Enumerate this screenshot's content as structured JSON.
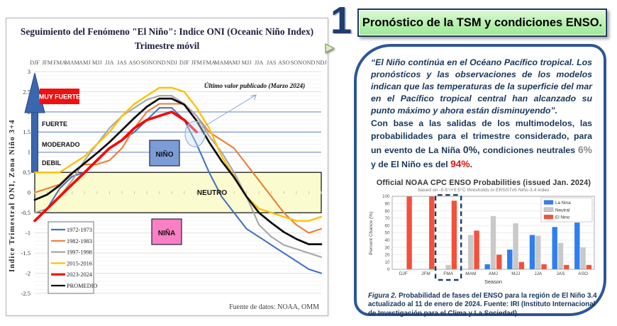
{
  "header": {
    "number": "1",
    "title": "Pronóstico de la TSM y condiciones ENSO."
  },
  "right_panel": {
    "quote": "“El Niño continúa en el Océano Pacífico tropical. Los pronósticos y las observaciones de los modelos indican que las temperaturas de la superficie del mar en el Pacífico tropical central han alcanzado su punto máximo y ahora están disminuyendo”.",
    "body_parts": {
      "a": "Con base a las salidas de los multimodelos, las probabilidades para el trimestre considerado, para un evento de La Niña ",
      "la_nina_pct": "0%,",
      "b": " condiciones neutrales ",
      "neutral_pct": "6%",
      "c": " y de  El Niño es del ",
      "el_nino_pct": "94%",
      "d": "."
    },
    "caption_prefix": "Figura 2.",
    "caption_text": " Probabilidad de fases del ENSO para la región de El Niño 3.4 actualizado al 11 de enero de 2024. Fuente: IRI (Instituto Internacional de Investigación para el Clima y La Sociedad)."
  },
  "colors": {
    "neutral_band": "#FBFBD0",
    "nino_box": "#7C9CD6",
    "nina_box": "#F980C2",
    "muy_fuerte_box": "#EE1111",
    "arrow_blue": "#3A67B0",
    "grid_blue": "#88A3D4",
    "panel_border": "#2C5796",
    "title_box_green": "#B4EFAB",
    "highlight_dash": "#17406B"
  },
  "chart_data": [
    {
      "type": "line",
      "title_line1": "Seguimiento del Fenómeno \"El Niño\": Indice ONI (Oceanic Niño Index)",
      "title_line2": "Trimestre móvil",
      "ylabel": "Indice Trimestral ONI, Zona Niño 3+4",
      "source": "Fuente de datos: NOAA, OMM",
      "annotation": "Último valor publicado  (Marzo 2024)",
      "x": [
        "DJF",
        "JFM",
        "FMA",
        "MAM",
        "AMJ",
        "MJJ",
        "JJA",
        "JAS",
        "ASO",
        "SON",
        "OND",
        "NDJ",
        "DJF",
        "JFM",
        "FMA",
        "MAM",
        "AMJ",
        "MJJ",
        "JJA",
        "JAS",
        "ASO",
        "SON",
        "OND",
        "NDJ"
      ],
      "ylim": [
        -2.5,
        3
      ],
      "yticks": [
        3,
        2.5,
        2,
        1.5,
        1,
        0.5,
        0,
        -0.5,
        -1,
        -1.5,
        -2,
        -2.5
      ],
      "blue_gridlines": [
        1,
        1.5,
        2
      ],
      "neutral_band": [
        -0.5,
        0.5
      ],
      "zones": {
        "muy_fuerte": "MUY FUERTE",
        "fuerte": "FUERTE",
        "moderado": "MODERADO",
        "debil": "DEBIL",
        "nino": "NIÑO",
        "neutro": "NEUTRO",
        "nina": "NIÑA"
      },
      "grid": true,
      "legend_position": "bottom-left",
      "series": [
        {
          "name": "1972-1973",
          "color": "#4472C4",
          "width": 2.1,
          "values": [
            -0.7,
            -0.4,
            0.1,
            0.4,
            0.5,
            0.8,
            1.1,
            1.3,
            1.5,
            1.8,
            2.1,
            2.1,
            1.8,
            1.2,
            0.5,
            -0.1,
            -0.5,
            -0.9,
            -1.1,
            -1.3,
            -1.5,
            -1.7,
            -1.9,
            -2.0
          ]
        },
        {
          "name": "1982-1983",
          "color": "#ED7D31",
          "width": 2.1,
          "values": [
            0.0,
            0.1,
            0.2,
            0.5,
            0.7,
            0.7,
            0.8,
            1.1,
            1.6,
            2.0,
            2.2,
            2.2,
            2.2,
            1.9,
            1.5,
            1.3,
            1.1,
            0.7,
            0.3,
            -0.1,
            -0.5,
            -0.8,
            -1.0,
            -0.9
          ]
        },
        {
          "name": "1997-1998",
          "color": "#A6A6A6",
          "width": 2.1,
          "values": [
            -0.5,
            -0.4,
            -0.1,
            0.3,
            0.8,
            1.2,
            1.6,
            1.9,
            2.1,
            2.3,
            2.4,
            2.4,
            2.2,
            1.9,
            1.4,
            1.0,
            0.5,
            -0.1,
            -0.8,
            -1.1,
            -1.3,
            -1.4,
            -1.5,
            -1.6
          ]
        },
        {
          "name": "2015-2016",
          "color": "#FFC000",
          "width": 2.4,
          "values": [
            0.5,
            0.5,
            0.5,
            0.7,
            0.9,
            1.2,
            1.5,
            1.9,
            2.2,
            2.4,
            2.6,
            2.6,
            2.5,
            2.1,
            1.6,
            0.9,
            0.4,
            -0.1,
            -0.4,
            -0.5,
            -0.6,
            -0.7,
            -0.7,
            -0.6
          ]
        },
        {
          "name": "2023-2024",
          "color": "#FF0000",
          "width": 3.6,
          "values": [
            -0.7,
            -0.4,
            -0.1,
            0.2,
            0.5,
            0.8,
            1.1,
            1.3,
            1.6,
            1.8,
            1.9,
            2.0,
            1.8,
            1.5
          ]
        },
        {
          "name": "PROMEDIO",
          "color": "#0a0a0a",
          "width": 2.7,
          "values": [
            -0.18,
            -0.05,
            0.18,
            0.48,
            0.73,
            0.98,
            1.25,
            1.55,
            1.85,
            2.13,
            2.33,
            2.33,
            2.18,
            1.78,
            1.25,
            0.78,
            0.38,
            -0.1,
            -0.5,
            -0.75,
            -0.98,
            -1.15,
            -1.28,
            -1.28
          ]
        }
      ]
    },
    {
      "type": "bar",
      "title": "Official NOAA CPC ENSO Probabilities (issued Jan. 2024)",
      "subtitle": "based on -0.5°/+0.5°C thresholds in ERSSTv5 Niño-3.4 index",
      "xlabel": "Season",
      "ylabel": "Percent Chance (%)",
      "ylim": [
        0,
        100
      ],
      "ytick_step": 10,
      "grid": true,
      "legend_position": "top-right",
      "categories": [
        "DJF",
        "JFM",
        "FMA",
        "MAM",
        "AMJ",
        "MJJ",
        "JJA",
        "JAS",
        "ASO"
      ],
      "highlighted_category": "FMA",
      "series": [
        {
          "name": "La Nina",
          "color": "#2E7FEF",
          "values": [
            0,
            0,
            0,
            0,
            7,
            27,
            47,
            58,
            64
          ]
        },
        {
          "name": "Neutral",
          "color": "#C9C9C9",
          "values": [
            0,
            0,
            6,
            47,
            73,
            63,
            46,
            36,
            30
          ]
        },
        {
          "name": "El Nino",
          "color": "#F4503B",
          "values": [
            100,
            100,
            94,
            53,
            20,
            10,
            7,
            6,
            6
          ]
        }
      ]
    }
  ]
}
